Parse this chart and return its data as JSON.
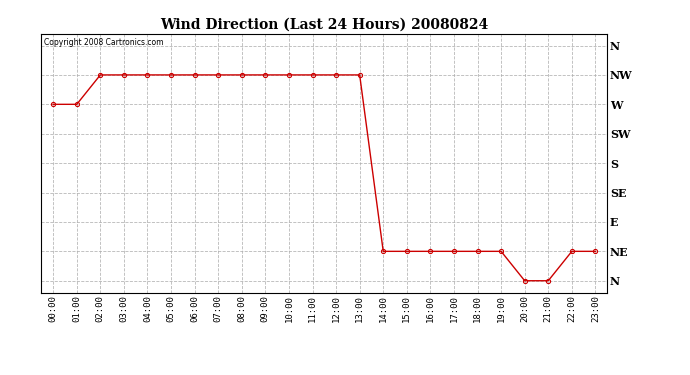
{
  "title": "Wind Direction (Last 24 Hours) 20080824",
  "copyright_text": "Copyright 2008 Cartronics.com",
  "background_color": "#ffffff",
  "plot_bg_color": "#ffffff",
  "line_color": "#cc0000",
  "marker_color": "#cc0000",
  "grid_color": "#b0b0b0",
  "x_labels": [
    "00:00",
    "01:00",
    "02:00",
    "03:00",
    "04:00",
    "05:00",
    "06:00",
    "07:00",
    "08:00",
    "09:00",
    "10:00",
    "11:00",
    "12:00",
    "13:00",
    "14:00",
    "15:00",
    "16:00",
    "17:00",
    "18:00",
    "19:00",
    "20:00",
    "21:00",
    "22:00",
    "23:00"
  ],
  "y_labels": [
    "N",
    "NE",
    "E",
    "SE",
    "S",
    "SW",
    "W",
    "NW",
    "N"
  ],
  "y_values": [
    0,
    45,
    90,
    135,
    180,
    225,
    270,
    315,
    360
  ],
  "wind_data": [
    [
      0,
      270
    ],
    [
      1,
      270
    ],
    [
      2,
      315
    ],
    [
      3,
      315
    ],
    [
      4,
      315
    ],
    [
      5,
      315
    ],
    [
      6,
      315
    ],
    [
      7,
      315
    ],
    [
      8,
      315
    ],
    [
      9,
      315
    ],
    [
      10,
      315
    ],
    [
      11,
      315
    ],
    [
      12,
      315
    ],
    [
      13,
      315
    ],
    [
      14,
      45
    ],
    [
      15,
      45
    ],
    [
      16,
      45
    ],
    [
      17,
      45
    ],
    [
      18,
      45
    ],
    [
      19,
      45
    ],
    [
      20,
      0
    ],
    [
      21,
      0
    ],
    [
      22,
      45
    ],
    [
      23,
      45
    ]
  ]
}
